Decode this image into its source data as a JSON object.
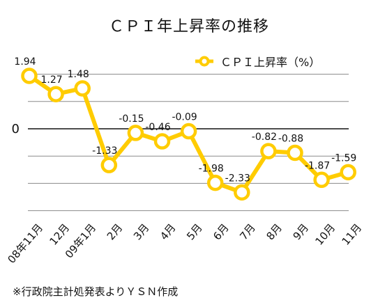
{
  "chart_data": {
    "type": "line",
    "title": "ＣＰＩ年上昇率の推移",
    "xlabel": "",
    "ylabel": "",
    "ylim": [
      -3.6,
      2.2
    ],
    "grid": true,
    "legend_position": "top-right",
    "zero_label": "0",
    "series_color": "#FFCC00",
    "categories": [
      "08年11月",
      "12月",
      "09年1月",
      "2月",
      "3月",
      "4月",
      "5月",
      "6月",
      "7月",
      "8月",
      "9月",
      "10月",
      "11月"
    ],
    "series": [
      {
        "name": "ＣＰＩ上昇率（%）",
        "values": [
          1.94,
          1.27,
          1.48,
          -1.33,
          -0.15,
          -0.46,
          -0.09,
          -1.98,
          -2.33,
          -0.82,
          -0.88,
          -1.87,
          -1.59
        ],
        "labels": [
          "1.94",
          "1.27",
          "1.48",
          "-1.33",
          "-0.15",
          "-0.46",
          "-0.09",
          "-1.98",
          "-2.33",
          "-0.82",
          "-0.88",
          "-1.87",
          "-1.59"
        ]
      }
    ]
  },
  "source_note": "※行政院主計処発表よりＹＳＮ作成"
}
